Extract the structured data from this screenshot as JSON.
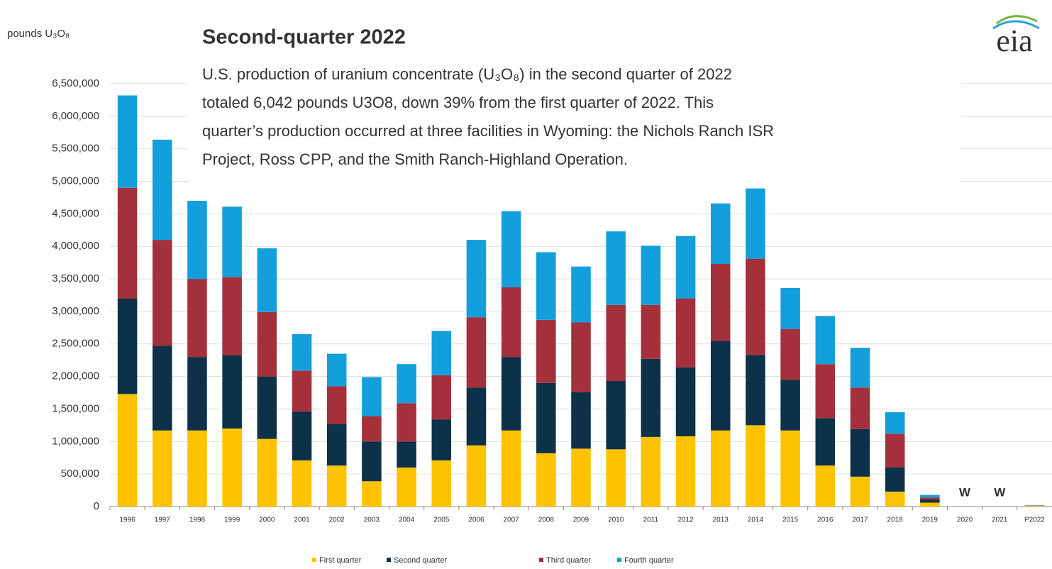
{
  "chart_data": {
    "type": "stacked_bar",
    "title": "Second-quarter 2022",
    "description": [
      "U.S. production of uranium concentrate (U₃O₈) in the second quarter of 2022",
      "totaled 6,042 pounds U3O8, down 39% from the first quarter of 2022. This",
      "quarter’s production occurred at three facilities in Wyoming: the Nichols Ranch ISR",
      "Project, Ross CPP, and the Smith Ranch-Highland Operation."
    ],
    "y_axis_label": "pounds U₃O₈",
    "logo": "eia",
    "categories": [
      "1996",
      "1997",
      "1998",
      "1999",
      "2000",
      "2001",
      "2002",
      "2003",
      "2004",
      "2005",
      "2006",
      "2007",
      "2008",
      "2009",
      "2010",
      "2011",
      "2012",
      "2013",
      "2014",
      "2015",
      "2016",
      "2017",
      "2018",
      "2019",
      "2020",
      "2021",
      "P2022"
    ],
    "series": [
      {
        "name": "First quarter",
        "color": "#fdc300",
        "values": [
          1730000,
          1170000,
          1170000,
          1200000,
          1040000,
          710000,
          630000,
          390000,
          600000,
          710000,
          940000,
          1170000,
          820000,
          890000,
          880000,
          1070000,
          1080000,
          1170000,
          1250000,
          1170000,
          630000,
          460000,
          230000,
          60000,
          null,
          null,
          9900
        ]
      },
      {
        "name": "Second quarter",
        "color": "#0c3149",
        "values": [
          1470000,
          1300000,
          1130000,
          1130000,
          960000,
          750000,
          640000,
          610000,
          400000,
          630000,
          890000,
          1130000,
          1080000,
          870000,
          1050000,
          1200000,
          1060000,
          1380000,
          1080000,
          780000,
          730000,
          730000,
          370000,
          50000,
          null,
          null,
          6042
        ]
      },
      {
        "name": "Third quarter",
        "color": "#a4303c",
        "values": [
          1700000,
          1630000,
          1200000,
          1200000,
          990000,
          630000,
          580000,
          390000,
          590000,
          680000,
          1080000,
          1070000,
          970000,
          1070000,
          1170000,
          830000,
          1060000,
          1180000,
          1480000,
          780000,
          830000,
          640000,
          520000,
          30000,
          null,
          null,
          null
        ]
      },
      {
        "name": "Fourth quarter",
        "color": "#139fdb",
        "values": [
          1420000,
          1540000,
          1200000,
          1080000,
          980000,
          560000,
          500000,
          600000,
          600000,
          680000,
          1190000,
          1170000,
          1040000,
          860000,
          1130000,
          910000,
          960000,
          930000,
          1080000,
          630000,
          740000,
          610000,
          330000,
          40000,
          null,
          null,
          null
        ]
      }
    ],
    "annotations": [
      {
        "x": "2020",
        "text": "W"
      },
      {
        "x": "2021",
        "text": "W"
      }
    ],
    "ylim": [
      0,
      6500000
    ],
    "yticks": [
      0,
      {
        "value": 500000,
        "label": "500,000"
      },
      {
        "value": 1000000,
        "label": "1,000,000"
      },
      {
        "value": 1500000,
        "label": "1,500,000"
      },
      {
        "value": 2000000,
        "label": "2,000,000"
      },
      {
        "value": 2500000,
        "label": "2,500,000"
      },
      {
        "value": 3000000,
        "label": "3,000,000"
      },
      {
        "value": 3500000,
        "label": "3,500,000"
      },
      {
        "value": 4000000,
        "label": "4,000,000"
      },
      {
        "value": 4500000,
        "label": "4,500,000"
      },
      {
        "value": 5000000,
        "label": "5,000,000"
      },
      {
        "value": 5500000,
        "label": "5,500,000"
      },
      {
        "value": 6000000,
        "label": "6,000,000"
      },
      {
        "value": 6500000,
        "label": "6,500,000"
      }
    ],
    "grid": true
  }
}
